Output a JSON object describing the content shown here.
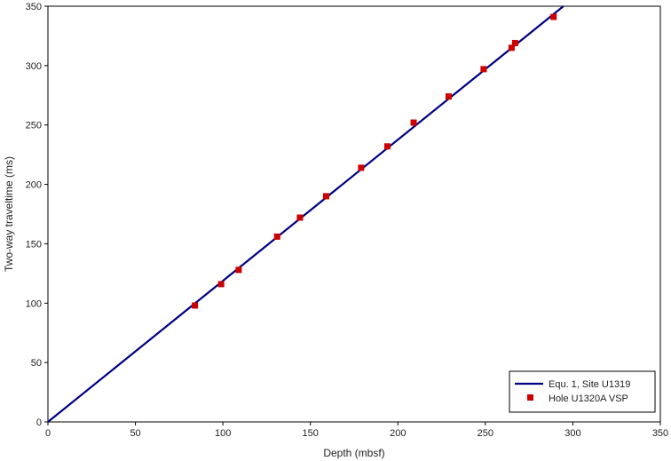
{
  "chart_data": {
    "type": "scatter",
    "xlabel": "Depth (mbsf)",
    "ylabel": "Two-way traveltime (ms)",
    "xlim": [
      0,
      350
    ],
    "ylim": [
      0,
      350
    ],
    "x_ticks": [
      "0",
      "50",
      "100",
      "150",
      "200",
      "250",
      "300",
      "350"
    ],
    "y_ticks": [
      "0",
      "50",
      "100",
      "150",
      "200",
      "250",
      "300",
      "350"
    ],
    "grid": false,
    "legend_position": "bottom-right",
    "series": [
      {
        "name": "Equ. 1, Site U1319",
        "kind": "line",
        "color": "#000080",
        "points": [
          [
            0,
            0
          ],
          [
            294.6,
            350
          ]
        ]
      },
      {
        "name": "Hole U1320A VSP",
        "kind": "scatter",
        "marker": "square",
        "color": "#cc0000",
        "points": [
          [
            84,
            98
          ],
          [
            99,
            116
          ],
          [
            109,
            128
          ],
          [
            131,
            156
          ],
          [
            144,
            172
          ],
          [
            159,
            190
          ],
          [
            179,
            214
          ],
          [
            194,
            232
          ],
          [
            209,
            252
          ],
          [
            229,
            274
          ],
          [
            249,
            297
          ],
          [
            265,
            315
          ],
          [
            267,
            319
          ],
          [
            289,
            341
          ]
        ]
      }
    ]
  }
}
